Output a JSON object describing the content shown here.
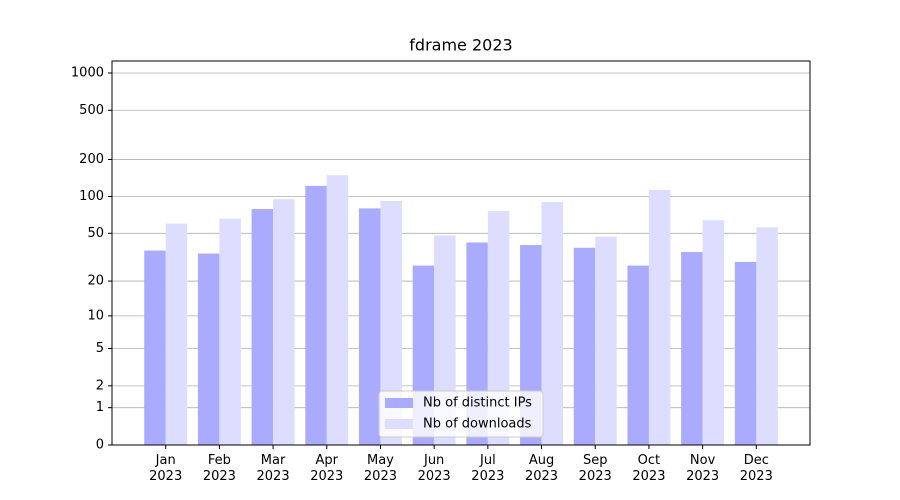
{
  "chart_data": {
    "type": "bar",
    "title": "fdrame 2023",
    "scale": "log1p",
    "categories": [
      "Jan\n2023",
      "Feb\n2023",
      "Mar\n2023",
      "Apr\n2023",
      "May\n2023",
      "Jun\n2023",
      "Jul\n2023",
      "Aug\n2023",
      "Sep\n2023",
      "Oct\n2023",
      "Nov\n2023",
      "Dec\n2023"
    ],
    "series": [
      {
        "name": "Nb of distinct IPs",
        "color": "#aaaaff",
        "values": [
          36,
          34,
          79,
          122,
          80,
          27,
          42,
          40,
          38,
          27,
          35,
          29
        ]
      },
      {
        "name": "Nb of downloads",
        "color": "#ddddff",
        "values": [
          60,
          66,
          95,
          149,
          92,
          48,
          76,
          90,
          47,
          113,
          64,
          56
        ]
      }
    ],
    "ylim": [
      0,
      1250
    ],
    "yticks": [
      0,
      1,
      2,
      5,
      10,
      20,
      50,
      100,
      200,
      500,
      1000
    ],
    "grid": true,
    "legend": "lower center"
  }
}
